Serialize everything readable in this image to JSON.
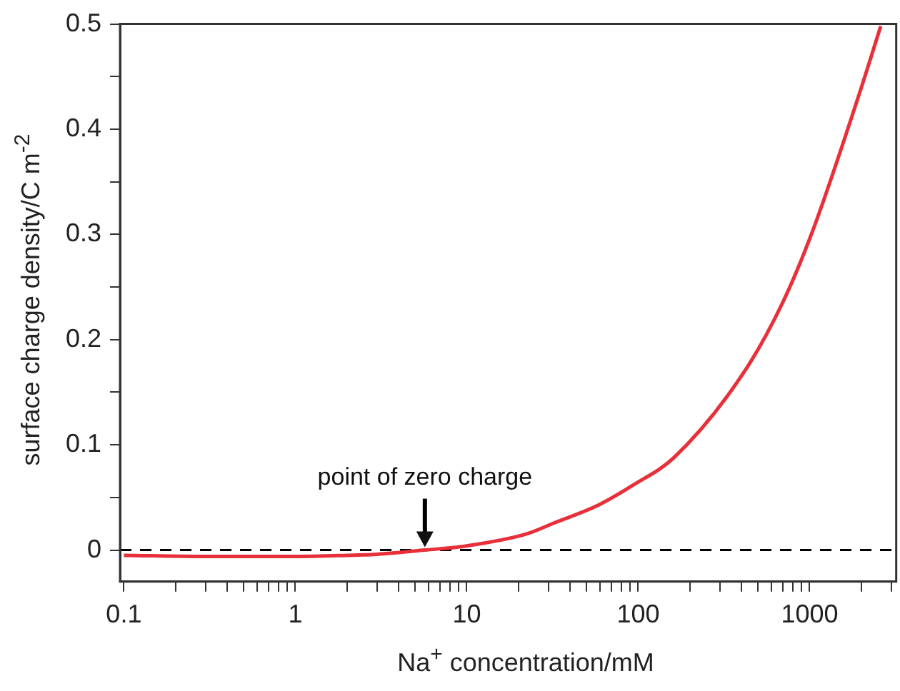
{
  "chart_data": {
    "type": "line",
    "xlabel": "Na$^{+}$ concentration/mM",
    "ylabel": "surface charge density/C m$^{-2}$",
    "log": "x",
    "x": [
      0.1,
      0.3,
      0.56,
      1,
      2,
      3,
      5.7,
      10,
      22,
      32.6,
      59,
      94,
      162,
      414,
      700,
      1040,
      1980,
      2600
    ],
    "series": [
      {
        "color": "#e8303a",
        "values": [
          -0.005,
          -0.006,
          -0.006,
          -0.006,
          -0.005,
          -0.004,
          0,
          0.004,
          0.015,
          0.026,
          0.043,
          0.062,
          0.088,
          0.169,
          0.236,
          0.303,
          0.437,
          0.498
        ]
      }
    ],
    "xlim": [
      0.095,
      3200
    ],
    "ylim": [
      -0.03,
      0.5
    ],
    "xticks": [
      0.1,
      {
        "value": 0.2,
        "label": null
      },
      {
        "value": 0.3,
        "label": null
      },
      {
        "value": 0.4,
        "label": null
      },
      {
        "value": 0.5,
        "label": null
      },
      {
        "value": 0.6,
        "label": null
      },
      {
        "value": 0.7,
        "label": null
      },
      {
        "value": 0.8,
        "label": null
      },
      {
        "value": 0.9,
        "label": null
      },
      1,
      {
        "value": 2,
        "label": null
      },
      {
        "value": 3,
        "label": null
      },
      {
        "value": 4,
        "label": null
      },
      {
        "value": 5,
        "label": null
      },
      {
        "value": 6,
        "label": null
      },
      {
        "value": 7,
        "label": null
      },
      {
        "value": 8,
        "label": null
      },
      {
        "value": 9,
        "label": null
      },
      10,
      {
        "value": 20,
        "label": null
      },
      {
        "value": 30,
        "label": null
      },
      {
        "value": 40,
        "label": null
      },
      {
        "value": 50,
        "label": null
      },
      {
        "value": 60,
        "label": null
      },
      {
        "value": 70,
        "label": null
      },
      {
        "value": 80,
        "label": null
      },
      {
        "value": 90,
        "label": null
      },
      100,
      {
        "value": 200,
        "label": null
      },
      {
        "value": 300,
        "label": null
      },
      {
        "value": 400,
        "label": null
      },
      {
        "value": 500,
        "label": null
      },
      {
        "value": 600,
        "label": null
      },
      {
        "value": 700,
        "label": null
      },
      {
        "value": 800,
        "label": null
      },
      {
        "value": 900,
        "label": null
      },
      1000,
      {
        "value": 2000,
        "label": null
      },
      {
        "value": 3000,
        "label": null
      }
    ],
    "yticks": [
      0,
      {
        "value": 0.05,
        "label": null
      },
      0.1,
      {
        "value": 0.15,
        "label": null
      },
      0.2,
      {
        "value": 0.25,
        "label": null
      },
      0.3,
      {
        "value": 0.35,
        "label": null
      },
      0.4,
      {
        "value": 0.45,
        "label": null
      },
      0.5
    ],
    "ref_lines": [
      {
        "axis": "y",
        "value": 0,
        "color": "#000000",
        "line_style": "dashed"
      }
    ],
    "annotations": [
      {
        "text": "point of zero charge",
        "x": 5.7,
        "y": 0
      }
    ],
    "grid": false,
    "legend": false,
    "marker": "none",
    "line_style": "solid"
  }
}
